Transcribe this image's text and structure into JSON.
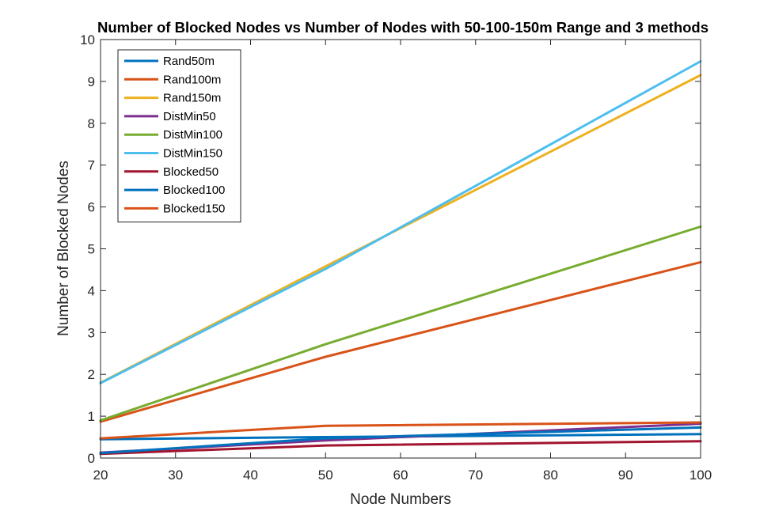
{
  "chart_data": {
    "type": "line",
    "title": "Number of Blocked Nodes vs Number of Nodes with 50-100-150m Range and 3 methods",
    "xlabel": "Node Numbers",
    "ylabel": "Number of Blocked Nodes",
    "xlim": [
      20,
      100
    ],
    "ylim": [
      0,
      10
    ],
    "xticks": [
      20,
      30,
      40,
      50,
      60,
      70,
      80,
      90,
      100
    ],
    "yticks": [
      0,
      1,
      2,
      3,
      4,
      5,
      6,
      7,
      8,
      9,
      10
    ],
    "x": [
      20,
      50,
      100
    ],
    "grid": false,
    "legend_position": "top-left",
    "series": [
      {
        "name": "Rand50m",
        "color": "#0072BD",
        "values": [
          0.45,
          0.5,
          0.57
        ]
      },
      {
        "name": "Rand100m",
        "color": "#D95319",
        "values": [
          0.87,
          2.42,
          4.68
        ]
      },
      {
        "name": "Rand150m",
        "color": "#EDB120",
        "values": [
          1.8,
          4.58,
          9.15
        ]
      },
      {
        "name": "DistMin50",
        "color": "#7E2F8E",
        "values": [
          0.13,
          0.42,
          0.82
        ]
      },
      {
        "name": "DistMin100",
        "color": "#77AC30",
        "values": [
          0.9,
          2.72,
          5.53
        ]
      },
      {
        "name": "DistMin150",
        "color": "#4DBEEE",
        "values": [
          1.79,
          4.52,
          9.48
        ]
      },
      {
        "name": "Blocked50",
        "color": "#A2142F",
        "values": [
          0.1,
          0.3,
          0.4
        ]
      },
      {
        "name": "Blocked100",
        "color": "#0072BD",
        "values": [
          0.12,
          0.47,
          0.73
        ]
      },
      {
        "name": "Blocked150",
        "color": "#D95319",
        "values": [
          0.47,
          0.77,
          0.85
        ]
      }
    ]
  }
}
